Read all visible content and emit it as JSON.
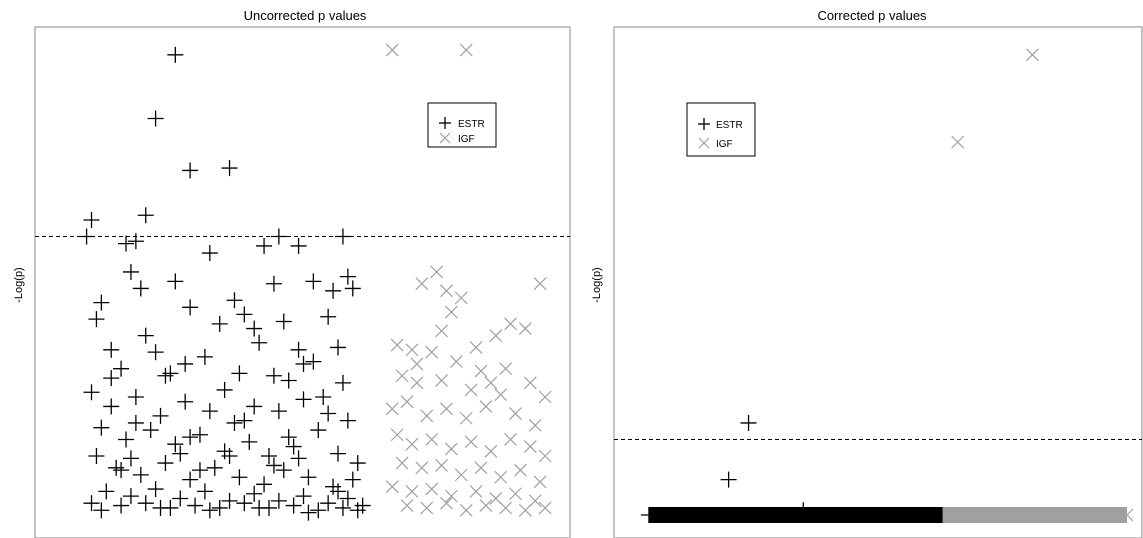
{
  "chart_data": [
    {
      "type": "scatter",
      "title": "Uncorrected p values",
      "ylabel": "-Log(p)",
      "xlabel": "",
      "grid": false,
      "legend_placement": "top-right",
      "threshold": 11.8,
      "xlim": [
        0,
        100
      ],
      "ylim": [
        0,
        20
      ],
      "colors": {
        "ESTR": "#000000",
        "IGF": "#a0a0a0"
      },
      "series": [
        {
          "name": "ESTR",
          "marker": "plus",
          "points": [
            [
              24,
              19.5
            ],
            [
              20,
              16.8
            ],
            [
              27,
              14.6
            ],
            [
              35,
              14.7
            ],
            [
              7,
              12.5
            ],
            [
              6,
              11.8
            ],
            [
              18,
              12.7
            ],
            [
              14,
              11.5
            ],
            [
              16,
              11.6
            ],
            [
              49,
              11.4
            ],
            [
              45,
              11.8
            ],
            [
              42,
              11.4
            ],
            [
              31,
              11.1
            ],
            [
              58,
              11.8
            ],
            [
              15,
              10.3
            ],
            [
              17,
              9.6
            ],
            [
              24,
              9.9
            ],
            [
              9,
              9.0
            ],
            [
              8,
              8.3
            ],
            [
              27,
              8.8
            ],
            [
              36,
              9.1
            ],
            [
              38,
              8.5
            ],
            [
              44,
              9.8
            ],
            [
              52,
              9.9
            ],
            [
              56,
              9.5
            ],
            [
              59,
              10.1
            ],
            [
              60,
              9.6
            ],
            [
              55,
              8.4
            ],
            [
              46,
              8.2
            ],
            [
              40,
              7.9
            ],
            [
              33,
              8.1
            ],
            [
              18,
              7.6
            ],
            [
              11,
              7.0
            ],
            [
              13,
              6.2
            ],
            [
              20,
              6.9
            ],
            [
              30,
              6.7
            ],
            [
              41,
              7.3
            ],
            [
              49,
              7.0
            ],
            [
              57,
              7.1
            ],
            [
              22,
              5.9
            ],
            [
              26,
              6.4
            ],
            [
              37,
              6.0
            ],
            [
              47,
              5.7
            ],
            [
              52,
              6.5
            ],
            [
              58,
              5.6
            ],
            [
              7,
              5.2
            ],
            [
              11,
              4.6
            ],
            [
              16,
              5.0
            ],
            [
              21,
              4.2
            ],
            [
              26,
              4.8
            ],
            [
              31,
              4.4
            ],
            [
              36,
              3.9
            ],
            [
              40,
              4.6
            ],
            [
              45,
              4.4
            ],
            [
              50,
              4.9
            ],
            [
              55,
              4.3
            ],
            [
              59,
              4.0
            ],
            [
              9,
              3.7
            ],
            [
              14,
              3.2
            ],
            [
              19,
              3.6
            ],
            [
              24,
              3.0
            ],
            [
              29,
              3.4
            ],
            [
              34,
              2.7
            ],
            [
              39,
              3.1
            ],
            [
              43,
              2.5
            ],
            [
              48,
              2.9
            ],
            [
              53,
              3.6
            ],
            [
              57,
              2.6
            ],
            [
              61,
              2.2
            ],
            [
              8,
              2.5
            ],
            [
              12,
              2.0
            ],
            [
              17,
              1.7
            ],
            [
              22,
              2.2
            ],
            [
              27,
              1.5
            ],
            [
              32,
              2.0
            ],
            [
              37,
              1.6
            ],
            [
              42,
              1.3
            ],
            [
              46,
              1.9
            ],
            [
              51,
              1.6
            ],
            [
              56,
              1.2
            ],
            [
              60,
              1.5
            ],
            [
              10,
              1.0
            ],
            [
              15,
              0.8
            ],
            [
              20,
              1.1
            ],
            [
              25,
              0.7
            ],
            [
              30,
              1.0
            ],
            [
              35,
              0.6
            ],
            [
              40,
              0.9
            ],
            [
              45,
              0.6
            ],
            [
              50,
              0.8
            ],
            [
              55,
              0.5
            ],
            [
              59,
              0.7
            ],
            [
              7,
              0.5
            ],
            [
              13,
              0.4
            ],
            [
              18,
              0.5
            ],
            [
              23,
              0.3
            ],
            [
              28,
              0.4
            ],
            [
              33,
              0.3
            ],
            [
              38,
              0.5
            ],
            [
              43,
              0.3
            ],
            [
              48,
              0.4
            ],
            [
              53,
              0.2
            ],
            [
              58,
              0.3
            ],
            [
              62,
              0.4
            ],
            [
              11,
              5.8
            ],
            [
              23,
              6.0
            ],
            [
              34,
              5.3
            ],
            [
              44,
              5.9
            ],
            [
              50,
              6.4
            ],
            [
              54,
              5.0
            ],
            [
              13,
              1.9
            ],
            [
              29,
              1.9
            ],
            [
              44,
              2.1
            ],
            [
              57,
              1.0
            ],
            [
              21,
              0.3
            ],
            [
              31,
              0.2
            ],
            [
              41,
              0.3
            ],
            [
              51,
              0.1
            ],
            [
              61,
              0.2
            ],
            [
              9,
              0.2
            ],
            [
              15,
              2.4
            ],
            [
              25,
              2.6
            ],
            [
              35,
              2.5
            ],
            [
              47,
              3.3
            ],
            [
              16,
              3.9
            ],
            [
              27,
              3.3
            ],
            [
              38,
              4.0
            ],
            [
              49,
              2.4
            ]
          ]
        },
        {
          "name": "IGF",
          "marker": "x",
          "points": [
            [
              68,
              19.7
            ],
            [
              83,
              19.7
            ],
            [
              74,
              9.8
            ],
            [
              77,
              10.3
            ],
            [
              79,
              9.5
            ],
            [
              98,
              9.8
            ],
            [
              80,
              8.6
            ],
            [
              82,
              9.2
            ],
            [
              92,
              8.1
            ],
            [
              95,
              7.9
            ],
            [
              89,
              7.6
            ],
            [
              69,
              7.2
            ],
            [
              72,
              7.0
            ],
            [
              76,
              6.9
            ],
            [
              81,
              6.5
            ],
            [
              86,
              6.1
            ],
            [
              70,
              5.9
            ],
            [
              73,
              5.6
            ],
            [
              78,
              5.7
            ],
            [
              84,
              5.3
            ],
            [
              90,
              5.1
            ],
            [
              96,
              5.6
            ],
            [
              99,
              5.0
            ],
            [
              68,
              4.5
            ],
            [
              71,
              4.8
            ],
            [
              75,
              4.2
            ],
            [
              79,
              4.5
            ],
            [
              83,
              4.1
            ],
            [
              87,
              4.6
            ],
            [
              93,
              4.3
            ],
            [
              97,
              3.8
            ],
            [
              69,
              3.4
            ],
            [
              72,
              3.0
            ],
            [
              76,
              3.2
            ],
            [
              80,
              2.8
            ],
            [
              84,
              3.1
            ],
            [
              88,
              2.7
            ],
            [
              92,
              3.2
            ],
            [
              96,
              2.9
            ],
            [
              99,
              2.5
            ],
            [
              70,
              2.2
            ],
            [
              74,
              2.0
            ],
            [
              78,
              2.1
            ],
            [
              82,
              1.7
            ],
            [
              86,
              2.0
            ],
            [
              90,
              1.6
            ],
            [
              94,
              1.9
            ],
            [
              98,
              1.4
            ],
            [
              68,
              1.2
            ],
            [
              72,
              1.0
            ],
            [
              76,
              1.1
            ],
            [
              80,
              0.8
            ],
            [
              85,
              1.0
            ],
            [
              89,
              0.7
            ],
            [
              93,
              0.9
            ],
            [
              97,
              0.6
            ],
            [
              71,
              0.4
            ],
            [
              75,
              0.3
            ],
            [
              79,
              0.5
            ],
            [
              83,
              0.2
            ],
            [
              87,
              0.4
            ],
            [
              91,
              0.3
            ],
            [
              95,
              0.2
            ],
            [
              99,
              0.3
            ],
            [
              73,
              6.4
            ],
            [
              85,
              7.1
            ],
            [
              91,
              6.2
            ],
            [
              78,
              7.8
            ],
            [
              88,
              5.6
            ]
          ]
        }
      ]
    },
    {
      "type": "scatter",
      "title": "Corrected p values",
      "ylabel": "-Log(p)",
      "xlabel": "",
      "grid": false,
      "legend_placement": "top-left",
      "threshold": 3.2,
      "xlim": [
        0,
        100
      ],
      "ylim": [
        0,
        20
      ],
      "colors": {
        "ESTR": "#000000",
        "IGF": "#a0a0a0"
      },
      "band": [
        {
          "series": "ESTR",
          "x_from": 3,
          "x_to": 62,
          "y": 0
        },
        {
          "series": "IGF",
          "x_from": 62,
          "x_to": 99,
          "y": 0
        }
      ],
      "series": [
        {
          "name": "ESTR",
          "marker": "plus",
          "points": [
            [
              23,
              3.9
            ],
            [
              19,
              1.5
            ],
            [
              34,
              0.2
            ],
            [
              3,
              0.0
            ]
          ]
        },
        {
          "name": "IGF",
          "marker": "x",
          "points": [
            [
              80,
              19.5
            ],
            [
              65,
              15.8
            ]
          ]
        }
      ]
    }
  ]
}
